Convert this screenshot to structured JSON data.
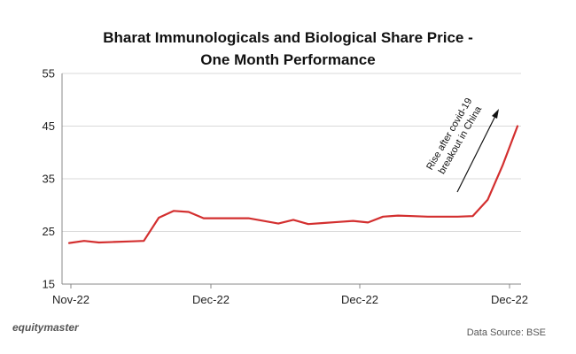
{
  "chart_data": {
    "type": "line",
    "title": "Bharat Immunologicals and Biological Share Price -",
    "subtitle": "One Month Performance",
    "xlabel": "",
    "ylabel": "",
    "ylim": [
      15,
      55
    ],
    "y_ticks": [
      15,
      25,
      35,
      45,
      55
    ],
    "x_tick_labels": [
      "Nov-22",
      "Dec-22",
      "Dec-22",
      "Dec-22"
    ],
    "grid": "horizontal",
    "series": [
      {
        "name": "Share Price",
        "color": "#d32f2f",
        "values": [
          22.8,
          23.2,
          22.9,
          23.0,
          23.1,
          23.2,
          27.6,
          28.9,
          28.7,
          27.5,
          27.5,
          27.5,
          27.5,
          27.0,
          26.5,
          27.2,
          26.4,
          26.6,
          26.8,
          27.0,
          26.7,
          27.8,
          28.0,
          27.9,
          27.8,
          27.8,
          27.8,
          27.9,
          31.0,
          37.5,
          45.0
        ]
      }
    ],
    "annotation": {
      "line1": "Rise after covid-19",
      "line2": "breakout in China"
    }
  },
  "footer": {
    "brand": "equitymaster",
    "source": "Data Source: BSE"
  },
  "colors": {
    "line": "#d32f2f",
    "grid": "#d9d9d9",
    "axis": "#888888"
  }
}
